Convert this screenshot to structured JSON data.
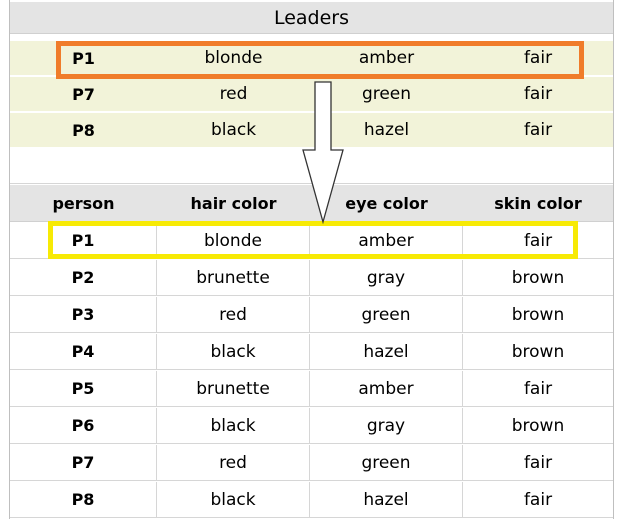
{
  "title": "Leaders",
  "leaders": [
    {
      "person": "P1",
      "hair": "blonde",
      "eye": "amber",
      "skin": "fair"
    },
    {
      "person": "P7",
      "hair": "red",
      "eye": "green",
      "skin": "fair"
    },
    {
      "person": "P8",
      "hair": "black",
      "eye": "hazel",
      "skin": "fair"
    }
  ],
  "headers": {
    "person": "person",
    "hair": "hair color",
    "eye": "eye color",
    "skin": "skin color"
  },
  "people": [
    {
      "person": "P1",
      "hair": "blonde",
      "eye": "amber",
      "skin": "fair"
    },
    {
      "person": "P2",
      "hair": "brunette",
      "eye": "gray",
      "skin": "brown"
    },
    {
      "person": "P3",
      "hair": "red",
      "eye": "green",
      "skin": "brown"
    },
    {
      "person": "P4",
      "hair": "black",
      "eye": "hazel",
      "skin": "brown"
    },
    {
      "person": "P5",
      "hair": "brunette",
      "eye": "amber",
      "skin": "fair"
    },
    {
      "person": "P6",
      "hair": "black",
      "eye": "gray",
      "skin": "brown"
    },
    {
      "person": "P7",
      "hair": "red",
      "eye": "green",
      "skin": "fair"
    },
    {
      "person": "P8",
      "hair": "black",
      "eye": "hazel",
      "skin": "fair"
    }
  ],
  "colors": {
    "leader_highlight": "#f07c2a",
    "match_highlight": "#f7ea05",
    "leader_bg": "#f2f3d9",
    "header_bg": "#e4e4e4"
  }
}
